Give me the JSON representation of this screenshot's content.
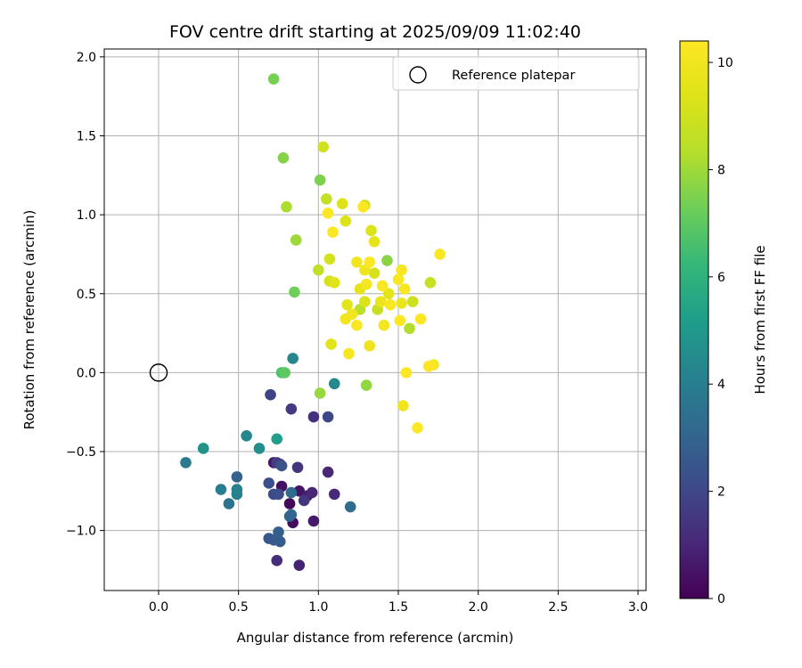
{
  "chart_data": {
    "type": "scatter",
    "title": "FOV centre drift starting at 2025/09/09 11:02:40",
    "xlabel": "Angular distance from reference (arcmin)",
    "ylabel": "Rotation from reference (arcmin)",
    "xlim": [
      -0.34,
      3.05
    ],
    "ylim": [
      -1.38,
      2.05
    ],
    "xticks": [
      0.0,
      0.5,
      1.0,
      1.5,
      2.0,
      2.5,
      3.0
    ],
    "xtick_labels": [
      "0.0",
      "0.5",
      "1.0",
      "1.5",
      "2.0",
      "2.5",
      "3.0"
    ],
    "yticks": [
      -1.0,
      -0.5,
      0.0,
      0.5,
      1.0,
      1.5,
      2.0
    ],
    "ytick_labels": [
      "−1.0",
      "−0.5",
      "0.0",
      "0.5",
      "1.0",
      "1.5",
      "2.0"
    ],
    "grid": true,
    "legend": {
      "placement": "top-right",
      "label": "Reference platepar"
    },
    "reference_point": {
      "x": 0.0,
      "y": 0.0
    },
    "colorbar": {
      "label": "Hours from first FF file",
      "range": [
        0,
        10.4
      ],
      "ticks": [
        0,
        2,
        4,
        6,
        8,
        10
      ],
      "tick_labels": [
        "0",
        "2",
        "4",
        "6",
        "8",
        "10"
      ],
      "colormap": "viridis"
    },
    "points": [
      {
        "x": 0.82,
        "y": -0.83,
        "h": 0.2
      },
      {
        "x": 0.84,
        "y": -0.95,
        "h": 0.3
      },
      {
        "x": 0.77,
        "y": -0.72,
        "h": 0.4
      },
      {
        "x": 0.88,
        "y": -0.75,
        "h": 0.5
      },
      {
        "x": 0.72,
        "y": -0.57,
        "h": 0.6
      },
      {
        "x": 0.97,
        "y": -0.94,
        "h": 0.7
      },
      {
        "x": 0.93,
        "y": -0.78,
        "h": 0.8
      },
      {
        "x": 0.88,
        "y": -1.22,
        "h": 0.9
      },
      {
        "x": 1.06,
        "y": -0.63,
        "h": 1.0
      },
      {
        "x": 0.96,
        "y": -0.76,
        "h": 1.0
      },
      {
        "x": 1.1,
        "y": -0.77,
        "h": 1.1
      },
      {
        "x": 0.74,
        "y": -1.19,
        "h": 1.2
      },
      {
        "x": 0.97,
        "y": -0.28,
        "h": 1.3
      },
      {
        "x": 0.87,
        "y": -0.6,
        "h": 1.4
      },
      {
        "x": 0.91,
        "y": -0.81,
        "h": 1.5
      },
      {
        "x": 0.83,
        "y": -0.23,
        "h": 1.6
      },
      {
        "x": 0.74,
        "y": -0.57,
        "h": 1.7
      },
      {
        "x": 0.76,
        "y": -0.58,
        "h": 1.8
      },
      {
        "x": 0.7,
        "y": -0.14,
        "h": 1.9
      },
      {
        "x": 1.06,
        "y": -0.28,
        "h": 2.0
      },
      {
        "x": 0.72,
        "y": -0.77,
        "h": 2.1
      },
      {
        "x": 0.75,
        "y": -0.77,
        "h": 2.2
      },
      {
        "x": 0.69,
        "y": -0.7,
        "h": 2.3
      },
      {
        "x": 0.77,
        "y": -0.59,
        "h": 2.4
      },
      {
        "x": 0.69,
        "y": -1.05,
        "h": 2.5
      },
      {
        "x": 0.72,
        "y": -1.06,
        "h": 2.6
      },
      {
        "x": 0.76,
        "y": -1.07,
        "h": 2.7
      },
      {
        "x": 0.75,
        "y": -1.01,
        "h": 2.8
      },
      {
        "x": 0.49,
        "y": -0.66,
        "h": 2.9
      },
      {
        "x": 0.82,
        "y": -0.91,
        "h": 3.0
      },
      {
        "x": 0.83,
        "y": -0.9,
        "h": 3.1
      },
      {
        "x": 0.83,
        "y": -0.76,
        "h": 3.2
      },
      {
        "x": 1.2,
        "y": -0.85,
        "h": 3.3
      },
      {
        "x": 0.44,
        "y": -0.83,
        "h": 3.6
      },
      {
        "x": 0.17,
        "y": -0.57,
        "h": 3.8
      },
      {
        "x": 0.39,
        "y": -0.74,
        "h": 4.0
      },
      {
        "x": 0.49,
        "y": -0.77,
        "h": 4.1
      },
      {
        "x": 0.49,
        "y": -0.74,
        "h": 4.2
      },
      {
        "x": 0.55,
        "y": -0.4,
        "h": 4.3
      },
      {
        "x": 0.84,
        "y": 0.09,
        "h": 4.3
      },
      {
        "x": 1.1,
        "y": -0.07,
        "h": 4.4
      },
      {
        "x": 0.63,
        "y": -0.48,
        "h": 4.6
      },
      {
        "x": 0.28,
        "y": -0.48,
        "h": 4.8
      },
      {
        "x": 0.74,
        "y": -0.42,
        "h": 5.2
      },
      {
        "x": 0.77,
        "y": 0.0,
        "h": 6.7
      },
      {
        "x": 0.79,
        "y": 0.0,
        "h": 7.0
      },
      {
        "x": 0.85,
        "y": 0.51,
        "h": 7.3
      },
      {
        "x": 0.72,
        "y": 1.86,
        "h": 7.4
      },
      {
        "x": 1.01,
        "y": 1.22,
        "h": 7.5
      },
      {
        "x": 0.78,
        "y": 1.36,
        "h": 7.6
      },
      {
        "x": 1.43,
        "y": 0.71,
        "h": 7.7
      },
      {
        "x": 1.3,
        "y": -0.08,
        "h": 7.8
      },
      {
        "x": 1.01,
        "y": -0.13,
        "h": 7.9
      },
      {
        "x": 0.86,
        "y": 0.84,
        "h": 8.0
      },
      {
        "x": 0.8,
        "y": 1.05,
        "h": 8.2
      },
      {
        "x": 1.57,
        "y": 0.28,
        "h": 8.3
      },
      {
        "x": 1.26,
        "y": 0.4,
        "h": 8.5
      },
      {
        "x": 1.0,
        "y": 0.65,
        "h": 8.6
      },
      {
        "x": 1.05,
        "y": 1.1,
        "h": 8.7
      },
      {
        "x": 1.7,
        "y": 0.57,
        "h": 8.8
      },
      {
        "x": 1.37,
        "y": 0.4,
        "h": 8.8
      },
      {
        "x": 1.59,
        "y": 0.45,
        "h": 8.9
      },
      {
        "x": 1.29,
        "y": 1.06,
        "h": 9.0
      },
      {
        "x": 1.03,
        "y": 1.43,
        "h": 9.0
      },
      {
        "x": 1.07,
        "y": 0.72,
        "h": 9.1
      },
      {
        "x": 1.07,
        "y": 0.58,
        "h": 9.2
      },
      {
        "x": 1.35,
        "y": 0.63,
        "h": 9.2
      },
      {
        "x": 1.33,
        "y": 0.9,
        "h": 9.3
      },
      {
        "x": 1.29,
        "y": 0.45,
        "h": 9.3
      },
      {
        "x": 1.17,
        "y": 0.96,
        "h": 9.4
      },
      {
        "x": 1.15,
        "y": 1.07,
        "h": 9.4
      },
      {
        "x": 1.1,
        "y": 0.57,
        "h": 9.5
      },
      {
        "x": 1.08,
        "y": 0.18,
        "h": 9.5
      },
      {
        "x": 1.18,
        "y": 0.43,
        "h": 9.6
      },
      {
        "x": 1.44,
        "y": 0.5,
        "h": 9.6
      },
      {
        "x": 1.35,
        "y": 0.83,
        "h": 9.7
      },
      {
        "x": 1.26,
        "y": 0.53,
        "h": 9.7
      },
      {
        "x": 1.39,
        "y": 0.45,
        "h": 9.8
      },
      {
        "x": 1.52,
        "y": 0.44,
        "h": 9.8
      },
      {
        "x": 1.29,
        "y": 0.65,
        "h": 9.9
      },
      {
        "x": 1.32,
        "y": 0.17,
        "h": 9.9
      },
      {
        "x": 1.21,
        "y": 0.37,
        "h": 10.0
      },
      {
        "x": 1.17,
        "y": 0.34,
        "h": 10.0
      },
      {
        "x": 1.24,
        "y": 0.7,
        "h": 10.0
      },
      {
        "x": 1.53,
        "y": -0.21,
        "h": 10.0
      },
      {
        "x": 1.72,
        "y": 0.05,
        "h": 10.1
      },
      {
        "x": 1.3,
        "y": 0.56,
        "h": 10.1
      },
      {
        "x": 1.41,
        "y": 0.3,
        "h": 10.1
      },
      {
        "x": 1.54,
        "y": 0.53,
        "h": 10.2
      },
      {
        "x": 1.19,
        "y": 0.12,
        "h": 10.2
      },
      {
        "x": 1.5,
        "y": 0.59,
        "h": 10.2
      },
      {
        "x": 1.52,
        "y": 0.65,
        "h": 10.2
      },
      {
        "x": 1.45,
        "y": 0.43,
        "h": 10.3
      },
      {
        "x": 1.4,
        "y": 0.55,
        "h": 10.3
      },
      {
        "x": 1.24,
        "y": 0.3,
        "h": 10.3
      },
      {
        "x": 1.09,
        "y": 0.89,
        "h": 10.3
      },
      {
        "x": 1.76,
        "y": 0.75,
        "h": 10.3
      },
      {
        "x": 1.55,
        "y": 0.0,
        "h": 10.4
      },
      {
        "x": 1.62,
        "y": -0.35,
        "h": 10.4
      },
      {
        "x": 1.64,
        "y": 0.34,
        "h": 10.4
      },
      {
        "x": 1.32,
        "y": 0.7,
        "h": 10.4
      },
      {
        "x": 1.69,
        "y": 0.04,
        "h": 10.4
      },
      {
        "x": 1.06,
        "y": 1.01,
        "h": 10.4
      },
      {
        "x": 1.28,
        "y": 1.05,
        "h": 10.4
      },
      {
        "x": 1.51,
        "y": 0.33,
        "h": 10.4
      }
    ]
  }
}
